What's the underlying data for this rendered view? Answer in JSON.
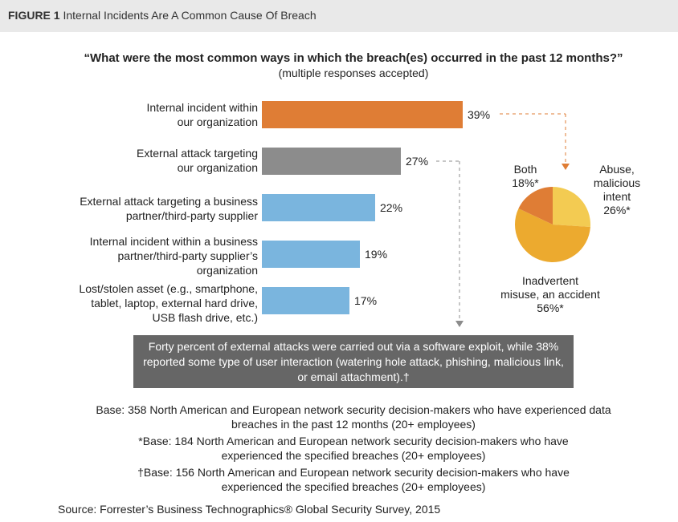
{
  "figure": {
    "label": "FIGURE 1",
    "title": "Internal Incidents Are A Common Cause Of Breach"
  },
  "question": "“What were the most common ways in which the breach(es) occurred in the past 12 months?”",
  "subquestion": "(multiple responses accepted)",
  "chart_data": [
    {
      "type": "bar",
      "orientation": "horizontal",
      "categories": [
        [
          "Internal incident within",
          "our organization"
        ],
        [
          "External attack targeting",
          "our organization"
        ],
        [
          "External attack targeting a business",
          "partner/third-party supplier"
        ],
        [
          "Internal incident within a business",
          "partner/third-party supplier’s",
          "organization"
        ],
        [
          "Lost/stolen asset (e.g., smartphone,",
          "tablet, laptop, external hard drive,",
          "USB flash drive, etc.)"
        ]
      ],
      "values": [
        39,
        27,
        22,
        19,
        17
      ],
      "value_labels": [
        "39%",
        "27%",
        "22%",
        "19%",
        "17%"
      ],
      "colors": [
        "#df7d35",
        "#8c8c8c",
        "#7ab5de",
        "#7ab5de",
        "#7ab5de"
      ],
      "xlim": [
        0,
        39
      ]
    },
    {
      "type": "pie",
      "slices": [
        {
          "label": [
            "Abuse,",
            "malicious",
            "intent",
            "26%*"
          ],
          "value": 26,
          "color": "#f3cb52"
        },
        {
          "label": [
            "Inadvertent",
            "misuse, an accident",
            "56%*"
          ],
          "value": 56,
          "color": "#ecaa2f"
        },
        {
          "label": [
            "Both",
            "18%*"
          ],
          "value": 18,
          "color": "#df7d35"
        }
      ]
    }
  ],
  "callout": "Forty percent of external attacks were carried out via a software exploit, while 38% reported some type of user interaction (watering hole attack, phishing, malicious link, or email attachment).†",
  "bases": [
    [
      "Base: 358 North American and European network security decision-makers who have experienced data",
      "breaches in the past 12 months (20+ employees)"
    ],
    [
      "*Base: 184 North American and European network security decision-makers who have",
      "experienced the specified breaches (20+ employees)"
    ],
    [
      "†Base: 156 North American and European network security decision-makers who have",
      "experienced the specified breaches (20+ employees)"
    ]
  ],
  "source": "Source: Forrester’s Business Technographics® Global Security Survey, 2015",
  "connector_color": "#df7d35",
  "connector_color_2": "#8c8c8c"
}
